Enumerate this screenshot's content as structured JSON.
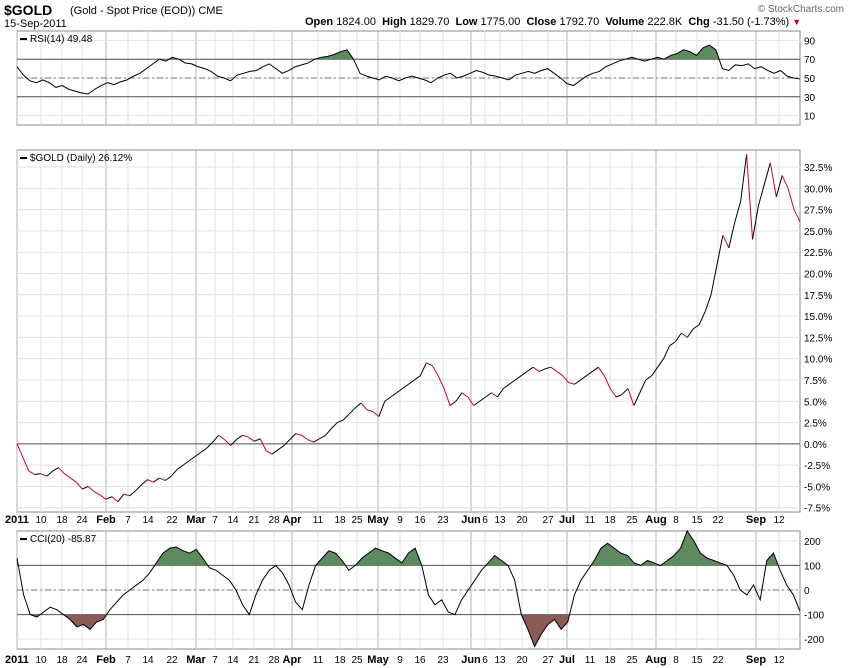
{
  "header": {
    "symbol": "$GOLD",
    "name": "(Gold - Spot Price (EOD)) CME",
    "date": "15-Sep-2011",
    "brand": "© StockCharts.com",
    "open_label": "Open",
    "open": "1824.00",
    "high_label": "High",
    "high": "1829.70",
    "low_label": "Low",
    "low": "1775.00",
    "close_label": "Close",
    "close": "1792.70",
    "volume_label": "Volume",
    "volume": "222.8K",
    "chg_label": "Chg",
    "chg": "-31.50 (-1.73%)",
    "down_color": "#cc0000"
  },
  "chart_data": [
    {
      "type": "line",
      "legend": "RSI(14) 49.48",
      "y_ticks": [
        "90",
        "70",
        "50",
        "30",
        "10"
      ],
      "ylim": [
        0,
        100
      ],
      "ref_lines": [
        70,
        50,
        30
      ],
      "fill_above": 70,
      "fill_below": 30,
      "fill_color": "#5d8a5e",
      "values": [
        62,
        53,
        47,
        45,
        48,
        45,
        40,
        42,
        38,
        36,
        34,
        33,
        38,
        42,
        45,
        43,
        46,
        48,
        52,
        55,
        60,
        65,
        70,
        68,
        72,
        70,
        66,
        65,
        62,
        60,
        57,
        52,
        50,
        47,
        53,
        55,
        57,
        58,
        62,
        65,
        60,
        55,
        58,
        62,
        64,
        66,
        70,
        72,
        73,
        75,
        78,
        80,
        70,
        55,
        52,
        50,
        48,
        52,
        50,
        47,
        50,
        52,
        50,
        48,
        45,
        50,
        53,
        55,
        50,
        52,
        55,
        58,
        56,
        53,
        52,
        50,
        48,
        53,
        55,
        57,
        55,
        58,
        60,
        55,
        50,
        44,
        42,
        47,
        52,
        55,
        57,
        62,
        65,
        68,
        70,
        72,
        70,
        68,
        70,
        72,
        70,
        74,
        76,
        80,
        78,
        74,
        82,
        85,
        80,
        60,
        58,
        64,
        63,
        65,
        60,
        62,
        58,
        55,
        58,
        52,
        50,
        49
      ]
    },
    {
      "type": "line",
      "legend": "$GOLD (Daily) 26.12%",
      "y_ticks": [
        "32.5%",
        "30.0%",
        "27.5%",
        "25.0%",
        "22.5%",
        "20.0%",
        "17.5%",
        "15.0%",
        "12.5%",
        "10.0%",
        "7.5%",
        "5.0%",
        "2.5%",
        "0.0%",
        "-2.5%",
        "-5.0%",
        "-7.5%"
      ],
      "ylim": [
        -8,
        34.5
      ],
      "zero_line": 0,
      "line_up_color": "#000000",
      "line_down_color": "#cc0033",
      "values": [
        0,
        -1.6,
        -3.2,
        -3.6,
        -3.5,
        -3.8,
        -3.2,
        -2.8,
        -3.5,
        -4.0,
        -4.5,
        -5.3,
        -5.0,
        -5.6,
        -6.0,
        -6.5,
        -6.2,
        -6.8,
        -5.9,
        -6.1,
        -5.5,
        -4.8,
        -4.2,
        -4.5,
        -4.0,
        -4.3,
        -3.8,
        -3.0,
        -2.5,
        -2.0,
        -1.5,
        -1.0,
        -0.5,
        0.2,
        1.0,
        0.5,
        -0.2,
        0.5,
        1.0,
        0.8,
        0.3,
        0.6,
        -0.8,
        -1.2,
        -0.7,
        -0.2,
        0.5,
        1.2,
        1.0,
        0.5,
        0.2,
        0.6,
        1.0,
        1.8,
        2.5,
        2.8,
        3.5,
        4.2,
        4.8,
        4.0,
        3.8,
        3.2,
        5.0,
        5.5,
        6.0,
        6.5,
        7.0,
        7.5,
        8.0,
        9.5,
        9.2,
        8.0,
        6.5,
        4.5,
        5.0,
        6.0,
        5.5,
        4.5,
        5.0,
        5.5,
        6.0,
        5.5,
        6.5,
        7.0,
        7.5,
        8.0,
        8.5,
        9.0,
        8.5,
        8.8,
        9.0,
        8.5,
        8.0,
        7.2,
        7.0,
        7.5,
        8.0,
        8.5,
        9.0,
        8.0,
        6.5,
        5.5,
        5.8,
        6.5,
        4.5,
        6.0,
        7.5,
        8.0,
        9.0,
        10.0,
        11.5,
        12.0,
        13.0,
        12.5,
        13.5,
        14.0,
        15.5,
        17.5,
        21.0,
        24.5,
        23.0,
        26.0,
        28.5,
        34.0,
        24.0,
        28.0,
        30.5,
        33.0,
        29.0,
        31.5,
        30.0,
        27.5,
        26.1
      ]
    },
    {
      "type": "line",
      "legend": "CCI(20) -85.87",
      "y_ticks": [
        "200",
        "100",
        "0",
        "-100",
        "-200"
      ],
      "ylim": [
        -240,
        240
      ],
      "ref_lines": [
        100,
        0,
        -100
      ],
      "fill_above": 100,
      "fill_below": -100,
      "fill_color_pos": "#5d8a5e",
      "fill_color_neg": "#8c5a55",
      "values": [
        130,
        -20,
        -100,
        -110,
        -90,
        -70,
        -80,
        -100,
        -120,
        -150,
        -140,
        -160,
        -130,
        -120,
        -80,
        -50,
        -20,
        0,
        20,
        40,
        70,
        110,
        150,
        170,
        175,
        160,
        150,
        165,
        130,
        90,
        80,
        60,
        40,
        0,
        -60,
        -100,
        -20,
        40,
        80,
        100,
        70,
        20,
        -50,
        -80,
        20,
        100,
        130,
        160,
        150,
        120,
        80,
        100,
        130,
        150,
        170,
        160,
        150,
        130,
        110,
        150,
        170,
        100,
        -20,
        -60,
        -40,
        -90,
        -100,
        -40,
        0,
        40,
        80,
        110,
        140,
        120,
        100,
        40,
        -100,
        -160,
        -230,
        -180,
        -140,
        -120,
        -160,
        -130,
        -20,
        40,
        80,
        120,
        170,
        190,
        170,
        150,
        140,
        110,
        100,
        120,
        110,
        100,
        120,
        140,
        170,
        240,
        200,
        150,
        130,
        120,
        110,
        100,
        60,
        0,
        -20,
        20,
        -40,
        120,
        150,
        80,
        20,
        -20,
        -86
      ],
      "x_ticks": [
        "2011",
        "10",
        "18",
        "24",
        "Feb",
        "7",
        "14",
        "22",
        "Mar",
        "7",
        "14",
        "21",
        "28",
        "Apr",
        "11",
        "18",
        "25",
        "May",
        "9",
        "16",
        "23",
        "Jun",
        "6",
        "13",
        "20",
        "27",
        "Jul",
        "11",
        "18",
        "25",
        "Aug",
        "8",
        "15",
        "22",
        "Sep",
        "12"
      ],
      "x_tick_bold": [
        "2011",
        "Feb",
        "Mar",
        "Apr",
        "May",
        "Jun",
        "Jul",
        "Aug",
        "Sep"
      ]
    }
  ]
}
